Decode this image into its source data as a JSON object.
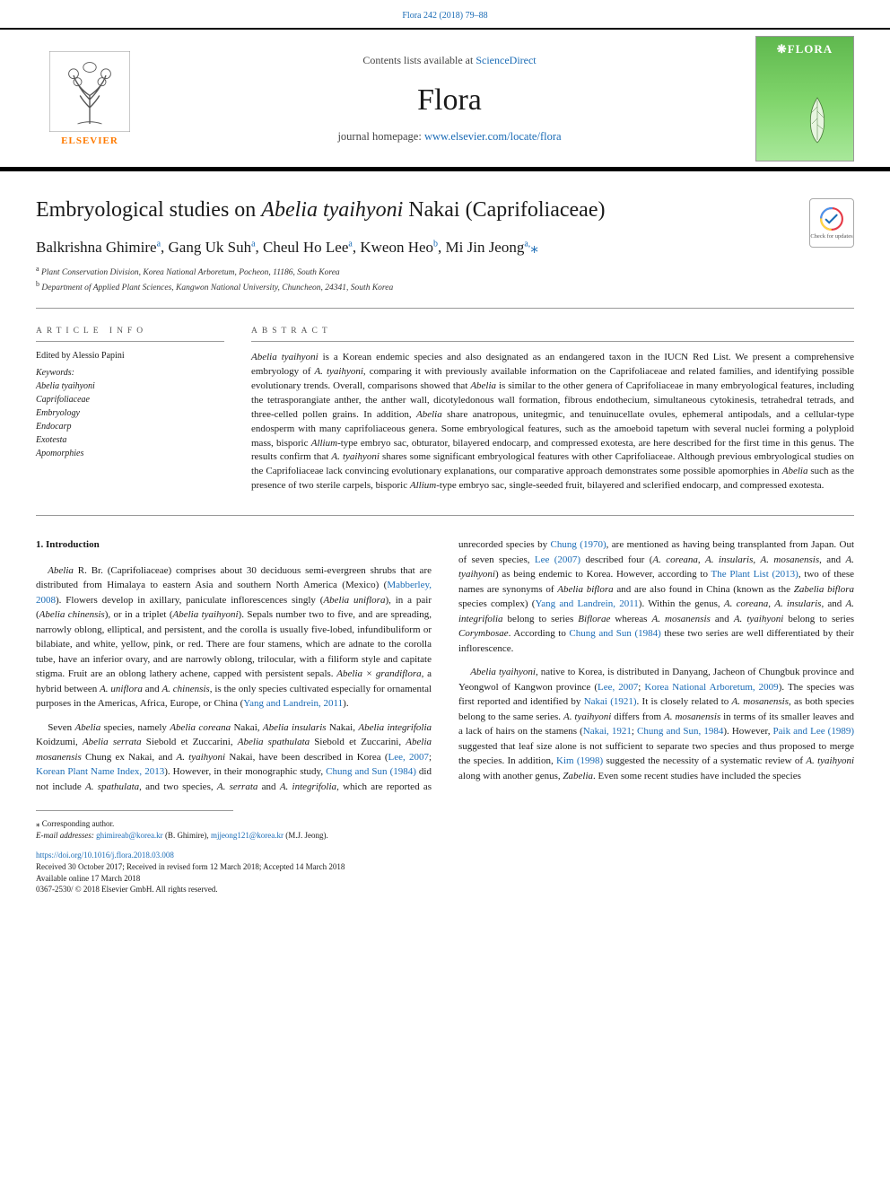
{
  "top_link": {
    "text": "Flora 242 (2018) 79–88",
    "href": "#"
  },
  "masthead": {
    "contents_prefix": "Contents lists available at ",
    "contents_link_text": "ScienceDirect",
    "journal_title": "Flora",
    "homepage_prefix": "journal homepage: ",
    "homepage_link_text": "www.elsevier.com/locate/flora",
    "publisher_name": "ELSEVIER",
    "cover_title": "❋FLORA",
    "colors": {
      "link": "#1a6bb5",
      "border": "#000000",
      "publisher_orange": "#ff7a00",
      "cover_gradient_top": "#5fb84e",
      "cover_gradient_mid": "#7fd46a",
      "cover_gradient_bottom": "#a8e89a"
    }
  },
  "article": {
    "title_pre": "Embryological studies on ",
    "title_italic": "Abelia tyaihyoni",
    "title_post": " Nakai (Caprifoliaceae)",
    "authors_html": "Balkrishna Ghimire<sup>a</sup>, Gang Uk Suh<sup>a</sup>, Cheul Ho Lee<sup>a</sup>, Kweon Heo<sup>b</sup>, Mi Jin Jeong<sup>a,</sup><span class='corr'>⁎</span>",
    "affiliations": [
      {
        "sup": "a",
        "text": "Plant Conservation Division, Korea National Arboretum, Pocheon, 11186, South Korea"
      },
      {
        "sup": "b",
        "text": "Department of Applied Plant Sciences, Kangwon National University, Chuncheon, 24341, South Korea"
      }
    ],
    "crossmark_label": "Check for updates"
  },
  "article_info": {
    "heading": "ARTICLE INFO",
    "editor": "Edited by Alessio Papini",
    "keywords_label": "Keywords:",
    "keywords": [
      "Abelia tyaihyoni",
      "Caprifoliaceae",
      "Embryology",
      "Endocarp",
      "Exotesta",
      "Apomorphies"
    ]
  },
  "abstract": {
    "heading": "ABSTRACT",
    "text": "Abelia tyaihyoni is a Korean endemic species and also designated as an endangered taxon in the IUCN Red List. We present a comprehensive embryology of A. tyaihyoni, comparing it with previously available information on the Caprifoliaceae and related families, and identifying possible evolutionary trends. Overall, comparisons showed that Abelia is similar to the other genera of Caprifoliaceae in many embryological features, including the tetrasporangiate anther, the anther wall, dicotyledonous wall formation, fibrous endothecium, simultaneous cytokinesis, tetrahedral tetrads, and three-celled pollen grains. In addition, Abelia share anatropous, unitegmic, and tenuinucellate ovules, ephemeral antipodals, and a cellular-type endosperm with many caprifoliaceous genera. Some embryological features, such as the amoeboid tapetum with several nuclei forming a polyploid mass, bisporic Allium-type embryo sac, obturator, bilayered endocarp, and compressed exotesta, are here described for the first time in this genus. The results confirm that A. tyaihyoni shares some significant embryological features with other Caprifoliaceae. Although previous embryological studies on the Caprifoliaceae lack convincing evolutionary explanations, our comparative approach demonstrates some possible apomorphies in Abelia such as the presence of two sterile carpels, bisporic Allium-type embryo sac, single-seeded fruit, bilayered and sclerified endocarp, and compressed exotesta."
  },
  "body": {
    "section_heading": "1. Introduction",
    "paragraphs": [
      "<em>Abelia</em> R. Br. (Caprifoliaceae) comprises about 30 deciduous semi-evergreen shrubs that are distributed from Himalaya to eastern Asia and southern North America (Mexico) (<a href='#'>Mabberley, 2008</a>). Flowers develop in axillary, paniculate inflorescences singly (<em>Abelia uniflora</em>), in a pair (<em>Abelia chinensis</em>), or in a triplet (<em>Abelia tyaihyoni</em>). Sepals number two to five, and are spreading, narrowly oblong, elliptical, and persistent, and the corolla is usually five-lobed, infundibuliform or bilabiate, and white, yellow, pink, or red. There are four stamens, which are adnate to the corolla tube, have an inferior ovary, and are narrowly oblong, trilocular, with a filiform style and capitate stigma. Fruit are an oblong lathery achene, capped with persistent sepals. <em>Abelia × grandiflora</em>, a hybrid between <em>A. uniflora</em> and <em>A. chinensis</em>, is the only species cultivated especially for ornamental purposes in the Americas, Africa, Europe, or China (<a href='#'>Yang and Landrein, 2011</a>).",
      "Seven <em>Abelia</em> species, namely <em>Abelia coreana</em> Nakai, <em>Abelia insularis</em> Nakai, <em>Abelia integrifolia</em> Koidzumi, <em>Abelia serrata</em> Siebold et Zuccarini, <em>Abelia spathulata</em> Siebold et Zuccarini, <em>Abelia mosanensis</em> Chung ex Nakai, and <em>A. tyaihyoni</em> Nakai, have been described in Korea (<a href='#'>Lee, 2007</a>; <a href='#'>Korean Plant Name Index, 2013</a>). However, in their monographic study, <a href='#'>Chung and Sun (1984)</a> did not include <em>A. spathulata</em>, and two species, <em>A. serrata</em> and <em>A. integrifolia</em>, which are reported as unrecorded species by <a href='#'>Chung (1970)</a>, are mentioned as having being transplanted from Japan. Out of seven species, <a href='#'>Lee (2007)</a> described four (<em>A. coreana</em>, <em>A. insularis</em>, <em>A. mosanensis</em>, and <em>A. tyaihyoni</em>) as being endemic to Korea. However, according to <a href='#'>The Plant List (2013)</a>, two of these names are synonyms of <em>Abelia biflora</em> and are also found in China (known as the <em>Zabelia biflora</em> species complex) (<a href='#'>Yang and Landrein, 2011</a>). Within the genus, <em>A. coreana</em>, <em>A. insularis</em>, and <em>A. integrifolia</em> belong to series <em>Biflorae</em> whereas <em>A. mosanensis</em> and <em>A. tyaihyoni</em> belong to series <em>Corymbosae</em>. According to <a href='#'>Chung and Sun (1984)</a> these two series are well differentiated by their inflorescence.",
      "<em>Abelia tyaihyoni</em>, native to Korea, is distributed in Danyang, Jacheon of Chungbuk province and Yeongwol of Kangwon province (<a href='#'>Lee, 2007</a>; <a href='#'>Korea National Arboretum, 2009</a>). The species was first reported and identified by <a href='#'>Nakai (1921)</a>. It is closely related to <em>A. mosanensis</em>, as both species belong to the same series. <em>A. tyaihyoni</em> differs from <em>A. mosanensis</em> in terms of its smaller leaves and a lack of hairs on the stamens (<a href='#'>Nakai, 1921</a>; <a href='#'>Chung and Sun, 1984</a>). However, <a href='#'>Paik and Lee (1989)</a> suggested that leaf size alone is not sufficient to separate two species and thus proposed to merge the species. In addition, <a href='#'>Kim (1998)</a> suggested the necessity of a systematic review of <em>A. tyaihyoni</em> along with another genus, <em>Zabelia</em>. Even some recent studies have included the species"
    ]
  },
  "footer": {
    "corr_note": "⁎ Corresponding author.",
    "email_label": "E-mail addresses:",
    "emails": [
      {
        "addr": "ghimireab@korea.kr",
        "who": "(B. Ghimire)"
      },
      {
        "addr": "mjjeong121@korea.kr",
        "who": "(M.J. Jeong)."
      }
    ],
    "doi": "https://doi.org/10.1016/j.flora.2018.03.008",
    "received": "Received 30 October 2017; Received in revised form 12 March 2018; Accepted 14 March 2018",
    "online": "Available online 17 March 2018",
    "copyright": "0367-2530/ © 2018 Elsevier GmbH. All rights reserved."
  },
  "typography": {
    "body_font": "Georgia, 'Times New Roman', serif",
    "body_fontsize": 11,
    "title_fontsize": 24,
    "journal_title_fontsize": 34,
    "authors_fontsize": 17,
    "affil_fontsize": 9.5,
    "footer_fontsize": 9
  }
}
